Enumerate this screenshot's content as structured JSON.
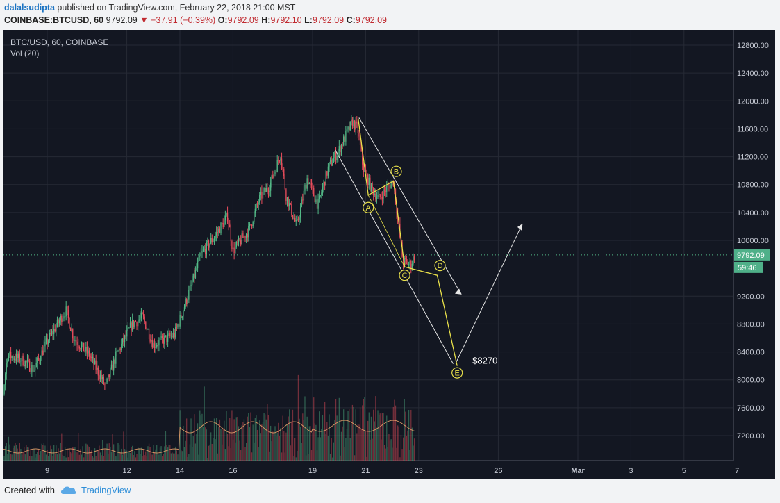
{
  "header": {
    "author": "dalalsudipta",
    "published": " published on TradingView.com, February 22, 2018 21:00 MST",
    "symbol": "COINBASE:BTCUSD, 60",
    "last": "9792.09",
    "change": "▼ −37.91 (−0.39%)",
    "o_label": "O:",
    "o": "9792.09",
    "h_label": "H:",
    "h": "9792.10",
    "l_label": "L:",
    "l": "9792.09",
    "c_label": "C:",
    "c": "9792.09"
  },
  "legend": {
    "title": "BTC/USD, 60, COINBASE",
    "vol": "Vol (20)"
  },
  "footer": {
    "created": "Created with",
    "brand": "TradingView"
  },
  "colors": {
    "bg": "#131722",
    "up": "#53b987",
    "down": "#eb4d5c",
    "pattern": "#e8e04a",
    "channel": "#e6e6e6",
    "price_tag": "#4fb089",
    "sma": "#f0a36b"
  },
  "chart_data": {
    "type": "candlestick",
    "ylim": [
      6900,
      12900
    ],
    "y_ticks": [
      "12800.00",
      "12400.00",
      "12000.00",
      "11600.00",
      "11200.00",
      "10800.00",
      "10400.00",
      "10000.00",
      "9200.00",
      "8800.00",
      "8400.00",
      "8000.00",
      "7600.00",
      "7200.00"
    ],
    "x_ticks": [
      "9",
      "12",
      "14",
      "16",
      "19",
      "21",
      "23",
      "26",
      "Mar",
      "3",
      "5",
      "7"
    ],
    "last_price_label": "9792.09",
    "countdown_label": "59:46",
    "price_points": [
      [
        "Feb 7",
        7900
      ],
      [
        "Feb 8",
        8300
      ],
      [
        "Feb 9",
        8600
      ],
      [
        "Feb 10",
        8300
      ],
      [
        "Feb 11",
        7950
      ],
      [
        "Feb 12",
        8700
      ],
      [
        "Feb 13",
        8500
      ],
      [
        "Feb 14",
        9100
      ],
      [
        "Feb 15",
        9800
      ],
      [
        "Feb 16",
        9900
      ],
      [
        "Feb 17",
        11000
      ],
      [
        "Feb 18",
        10300
      ],
      [
        "Feb 19",
        11000
      ],
      [
        "Feb 20",
        11700
      ],
      [
        "Feb 21",
        10650
      ],
      [
        "Feb 22",
        9700
      ]
    ],
    "pattern_points": [
      {
        "label": "",
        "x": "Feb 20 16:00",
        "y": 11750
      },
      {
        "label": "A",
        "x": "Feb 21 01:00",
        "y": 10650
      },
      {
        "label": "B",
        "x": "Feb 21 23:00",
        "y": 10850
      },
      {
        "label": "C",
        "x": "Feb 22 10:00",
        "y": 9620
      },
      {
        "label": "D",
        "x": "Feb 23 16:00",
        "y": 9500
      },
      {
        "label": "E",
        "x": "Feb 24 10:00",
        "y": 8200
      }
    ],
    "annotation": "$8270"
  }
}
